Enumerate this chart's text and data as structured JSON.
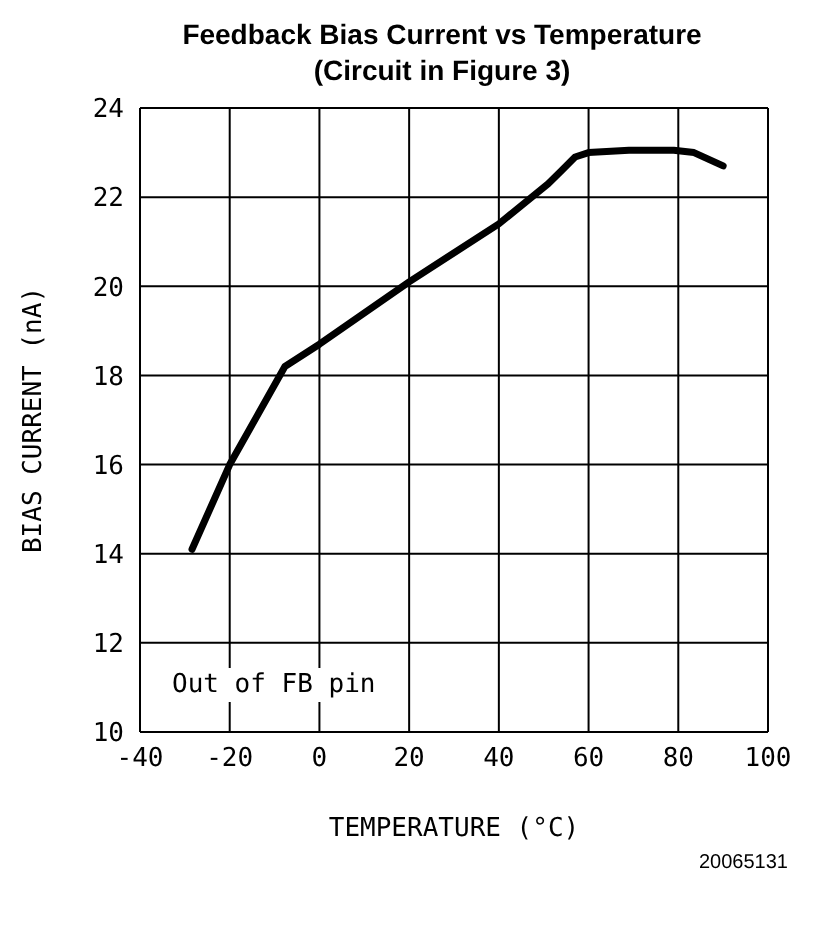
{
  "chart_data": {
    "type": "line",
    "title": "Feedback Bias Current vs Temperature",
    "subtitle": "(Circuit in Figure 3)",
    "xlabel": "TEMPERATURE (°C)",
    "ylabel": "BIAS CURRENT (nA)",
    "x": [
      -28.4,
      -20,
      -7.7,
      0,
      20,
      40,
      51,
      54,
      57,
      60,
      69,
      79,
      83.5,
      90
    ],
    "series": [
      {
        "color": "#000000",
        "values": [
          14.1,
          16,
          18.2,
          18.7,
          20.1,
          21.4,
          22.3,
          22.6,
          22.9,
          23.0,
          23.05,
          23.05,
          23.0,
          22.7
        ]
      }
    ],
    "xlim": [
      -40,
      100
    ],
    "xticks": [
      -40,
      -20,
      0,
      20,
      40,
      60,
      80,
      100
    ],
    "ylim": [
      10,
      24
    ],
    "yticks": [
      10,
      12,
      14,
      16,
      18,
      20,
      22,
      24
    ],
    "grid": true,
    "marker": "none",
    "line_style": "solid",
    "annotations": [
      "Out of FB pin",
      "20065131"
    ]
  }
}
